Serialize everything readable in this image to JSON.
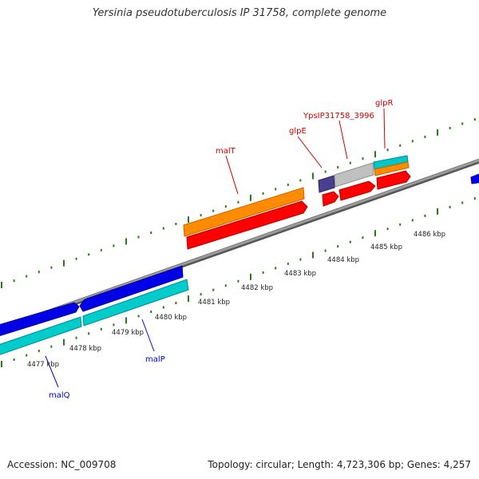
{
  "header": {
    "title": "Yersinia pseudotuberculosis IP 31758, complete genome"
  },
  "footer": {
    "accession": "Accession: NC_009708",
    "summary": "Topology: circular; Length: 4,723,306 bp; Genes: 4,257"
  },
  "colors": {
    "backbone": "#888888",
    "tick": "#2a7a1a",
    "forward_gene": "#ff8c00",
    "forward_gene_alt": "#00c8c8",
    "cds": "#ff0000",
    "reverse_gene": "#0000e6",
    "reverse_gene_alt": "#00cccc",
    "pseudo": "#c0c0c0",
    "other": "#4a3f8f",
    "label_top": "#cc0000",
    "label_bottom": "#0000cc"
  },
  "scale": {
    "labels": [
      "4477 kbp",
      "4478 kbp",
      "4479 kbp",
      "4480 kbp",
      "4481 kbp",
      "4482 kbp",
      "4483 kbp",
      "4484 kbp",
      "4485 kbp",
      "4486 kbp"
    ]
  },
  "features": {
    "top": [
      {
        "name": "malT",
        "color": "label_top"
      },
      {
        "name": "glpE",
        "color": "label_top"
      },
      {
        "name": "YpsIP31758_3996",
        "color": "label_top"
      },
      {
        "name": "glpR",
        "color": "label_top"
      }
    ],
    "bottom": [
      {
        "name": "malQ",
        "color": "label_bottom"
      },
      {
        "name": "malP",
        "color": "label_bottom"
      }
    ]
  }
}
